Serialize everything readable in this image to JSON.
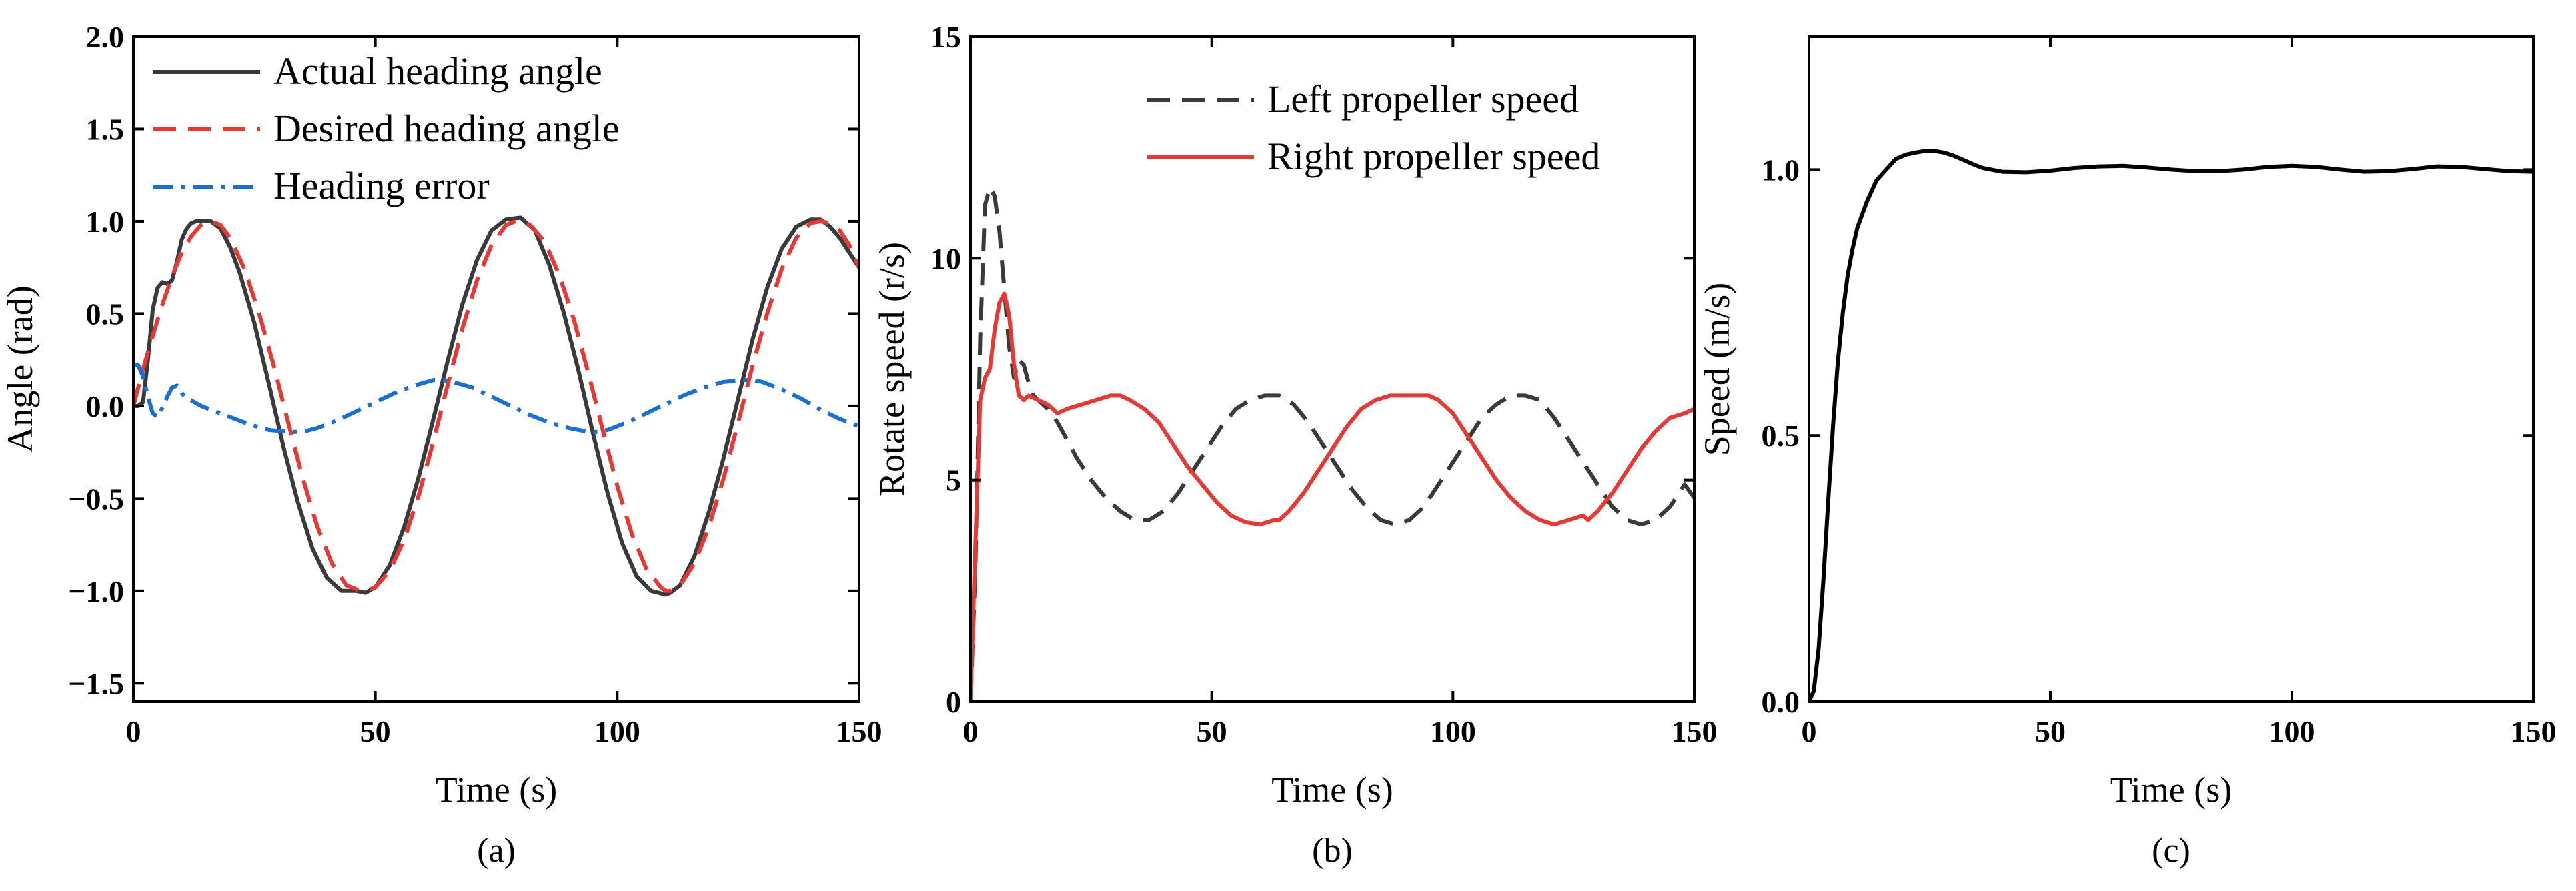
{
  "chart_data": [
    {
      "panel": "a",
      "type": "line",
      "caption": "(a)",
      "xlabel": "Time (s)",
      "ylabel": "Angle (rad)",
      "xlim": [
        0,
        150
      ],
      "ylim": [
        -1.6,
        2.0
      ],
      "xticks": [
        0,
        50,
        100,
        150
      ],
      "yticks": [
        -1.5,
        -1.0,
        -0.5,
        0.0,
        0.5,
        1.0,
        1.5,
        2.0
      ],
      "xtick_labels": [
        "0",
        "50",
        "100",
        "150"
      ],
      "ytick_labels": [
        "−1.5",
        "−1.0",
        "−0.5",
        "0.0",
        "0.5",
        "1.0",
        "1.5",
        "2.0"
      ],
      "legend_position": "top-left",
      "series": [
        {
          "name": "Actual heading angle",
          "color": "#3a3a3a",
          "style": "solid",
          "x": [
            0,
            1,
            2,
            3,
            4,
            5,
            6,
            7,
            8,
            9,
            10,
            11,
            12,
            13,
            14,
            16,
            18,
            20,
            22,
            25,
            28,
            31,
            34,
            37,
            40,
            43,
            46,
            48,
            50,
            53,
            56,
            59,
            62,
            65,
            68,
            71,
            74,
            77,
            80,
            83,
            86,
            89,
            92,
            95,
            98,
            101,
            104,
            107,
            110,
            111,
            113,
            116,
            119,
            122,
            125,
            128,
            131,
            134,
            137,
            140,
            142,
            144,
            146,
            148,
            150
          ],
          "y": [
            0.0,
            0.0,
            0.02,
            0.25,
            0.52,
            0.64,
            0.67,
            0.66,
            0.68,
            0.78,
            0.9,
            0.96,
            0.99,
            1.0,
            1.0,
            1.0,
            0.96,
            0.86,
            0.72,
            0.45,
            0.12,
            -0.22,
            -0.52,
            -0.77,
            -0.93,
            -1.0,
            -1.0,
            -1.01,
            -0.98,
            -0.86,
            -0.65,
            -0.38,
            -0.07,
            0.25,
            0.55,
            0.79,
            0.95,
            1.01,
            1.02,
            0.95,
            0.76,
            0.5,
            0.19,
            -0.15,
            -0.47,
            -0.74,
            -0.92,
            -1.0,
            -1.02,
            -1.01,
            -0.97,
            -0.81,
            -0.57,
            -0.28,
            0.04,
            0.36,
            0.64,
            0.85,
            0.97,
            1.01,
            1.01,
            0.97,
            0.91,
            0.83,
            0.75
          ]
        },
        {
          "name": "Desired heading angle",
          "color": "#e53935",
          "style": "dashed",
          "x": [
            0,
            2,
            4,
            6,
            8,
            10,
            12,
            14,
            16,
            18,
            20,
            23,
            26,
            29,
            32,
            35,
            38,
            41,
            44,
            47,
            48,
            50,
            53,
            56,
            59,
            62,
            65,
            68,
            71,
            74,
            77,
            79,
            80,
            82,
            85,
            88,
            91,
            94,
            97,
            100,
            103,
            106,
            109,
            110,
            111,
            113,
            116,
            119,
            122,
            125,
            128,
            131,
            134,
            137,
            140,
            142,
            144,
            146,
            148,
            150
          ],
          "y": [
            0.0,
            0.2,
            0.38,
            0.55,
            0.7,
            0.83,
            0.92,
            0.98,
            1.0,
            0.98,
            0.91,
            0.74,
            0.5,
            0.22,
            -0.09,
            -0.39,
            -0.65,
            -0.85,
            -0.97,
            -1.0,
            -1.0,
            -0.98,
            -0.89,
            -0.72,
            -0.48,
            -0.19,
            0.12,
            0.42,
            0.68,
            0.87,
            0.98,
            1.0,
            1.0,
            0.98,
            0.89,
            0.71,
            0.47,
            0.18,
            -0.13,
            -0.43,
            -0.69,
            -0.88,
            -0.98,
            -1.0,
            -1.0,
            -0.97,
            -0.85,
            -0.65,
            -0.39,
            -0.09,
            0.22,
            0.5,
            0.74,
            0.91,
            0.99,
            1.0,
            0.99,
            0.95,
            0.87,
            0.75
          ]
        },
        {
          "name": "Heading error",
          "color": "#1a6fd6",
          "style": "dashdot",
          "x": [
            0,
            1,
            2,
            3,
            4,
            5,
            6,
            7,
            8,
            9,
            10,
            11,
            12,
            14,
            17,
            20,
            24,
            28,
            32,
            35,
            38,
            42,
            46,
            50,
            54,
            58,
            62,
            64,
            66,
            70,
            74,
            78,
            82,
            86,
            90,
            94,
            96,
            98,
            102,
            106,
            110,
            114,
            118,
            122,
            126,
            128,
            130,
            134,
            138,
            142,
            146,
            150
          ],
          "y": [
            0.22,
            0.22,
            0.16,
            0.05,
            -0.04,
            -0.06,
            -0.01,
            0.05,
            0.1,
            0.11,
            0.07,
            0.04,
            0.03,
            0.0,
            -0.03,
            -0.06,
            -0.1,
            -0.13,
            -0.14,
            -0.14,
            -0.12,
            -0.08,
            -0.03,
            0.02,
            0.07,
            0.11,
            0.14,
            0.14,
            0.13,
            0.1,
            0.05,
            0.0,
            -0.05,
            -0.09,
            -0.12,
            -0.14,
            -0.14,
            -0.13,
            -0.09,
            -0.04,
            0.01,
            0.06,
            0.1,
            0.13,
            0.14,
            0.14,
            0.13,
            0.09,
            0.04,
            -0.02,
            -0.07,
            -0.11
          ]
        }
      ]
    },
    {
      "panel": "b",
      "type": "line",
      "caption": "(b)",
      "xlabel": "Time (s)",
      "ylabel": "Rotate speed (r/s)",
      "xlim": [
        0,
        150
      ],
      "ylim": [
        0,
        15
      ],
      "xticks": [
        0,
        50,
        100,
        150
      ],
      "yticks": [
        0,
        5,
        10,
        15
      ],
      "xtick_labels": [
        "0",
        "50",
        "100",
        "150"
      ],
      "ytick_labels": [
        "0",
        "5",
        "10",
        "15"
      ],
      "legend_position": "top-right",
      "series": [
        {
          "name": "Left propeller speed",
          "color": "#3a3a3a",
          "style": "dashed",
          "x": [
            0,
            1,
            2,
            3,
            4,
            5,
            6,
            7,
            8,
            9,
            10,
            11,
            12,
            13,
            14,
            16,
            18,
            20,
            22,
            25,
            28,
            31,
            34,
            37,
            40,
            43,
            46,
            49,
            52,
            55,
            58,
            61,
            64,
            67,
            70,
            73,
            76,
            79,
            82,
            85,
            88,
            91,
            94,
            97,
            100,
            103,
            106,
            109,
            112,
            115,
            118,
            121,
            124,
            127,
            130,
            133,
            136,
            139,
            142,
            145,
            148,
            150
          ],
          "y": [
            0.0,
            3.0,
            8.2,
            11.2,
            11.6,
            11.4,
            10.6,
            9.3,
            8.0,
            7.3,
            7.7,
            7.6,
            7.2,
            6.9,
            6.8,
            6.6,
            6.3,
            5.9,
            5.5,
            5.0,
            4.6,
            4.3,
            4.1,
            4.1,
            4.3,
            4.7,
            5.2,
            5.7,
            6.2,
            6.6,
            6.8,
            6.9,
            6.9,
            6.7,
            6.3,
            5.8,
            5.3,
            4.8,
            4.4,
            4.1,
            4.0,
            4.1,
            4.4,
            4.9,
            5.4,
            5.9,
            6.4,
            6.7,
            6.9,
            6.9,
            6.8,
            6.4,
            5.9,
            5.4,
            4.9,
            4.4,
            4.1,
            4.0,
            4.1,
            4.4,
            4.9,
            4.6
          ]
        },
        {
          "name": "Right propeller speed",
          "color": "#e53935",
          "style": "solid",
          "x": [
            0,
            1,
            2,
            3,
            4,
            5,
            6,
            7,
            8,
            9,
            10,
            11,
            12,
            14,
            16,
            18,
            20,
            23,
            26,
            29,
            31,
            33,
            36,
            39,
            42,
            45,
            48,
            51,
            54,
            57,
            60,
            63,
            64,
            66,
            69,
            72,
            75,
            78,
            81,
            84,
            87,
            90,
            93,
            95,
            97,
            100,
            103,
            106,
            109,
            112,
            115,
            118,
            121,
            124,
            127,
            128,
            130,
            133,
            136,
            139,
            142,
            145,
            148,
            150
          ],
          "y": [
            0.0,
            3.5,
            6.8,
            7.3,
            7.5,
            8.4,
            9.0,
            9.2,
            8.7,
            7.6,
            6.9,
            6.8,
            6.9,
            6.8,
            6.7,
            6.5,
            6.6,
            6.7,
            6.8,
            6.9,
            6.9,
            6.8,
            6.6,
            6.3,
            5.8,
            5.3,
            4.9,
            4.5,
            4.2,
            4.05,
            4.0,
            4.1,
            4.1,
            4.3,
            4.7,
            5.2,
            5.7,
            6.2,
            6.6,
            6.8,
            6.9,
            6.9,
            6.9,
            6.9,
            6.8,
            6.5,
            6.0,
            5.5,
            5.0,
            4.6,
            4.3,
            4.1,
            4.0,
            4.1,
            4.2,
            4.1,
            4.3,
            4.7,
            5.2,
            5.7,
            6.1,
            6.4,
            6.5,
            6.6
          ]
        }
      ]
    },
    {
      "panel": "c",
      "type": "line",
      "caption": "(c)",
      "xlabel": "Time (s)",
      "ylabel": "Speed (m/s)",
      "xlim": [
        0,
        150
      ],
      "ylim": [
        0,
        1.25
      ],
      "xticks": [
        0,
        50,
        100,
        150
      ],
      "yticks": [
        0.0,
        0.5,
        1.0
      ],
      "xtick_labels": [
        "0",
        "50",
        "100",
        "150"
      ],
      "ytick_labels": [
        "0.0",
        "0.5",
        "1.0"
      ],
      "legend_position": "none",
      "series": [
        {
          "name": "Speed",
          "color": "#000000",
          "style": "solid",
          "x": [
            0,
            1,
            2,
            3,
            4,
            5,
            6,
            7,
            8,
            9,
            10,
            12,
            14,
            16,
            18,
            20,
            22,
            24,
            26,
            28,
            30,
            32,
            34,
            36,
            40,
            45,
            50,
            55,
            60,
            65,
            70,
            75,
            80,
            85,
            90,
            95,
            100,
            105,
            110,
            115,
            120,
            125,
            130,
            135,
            140,
            145,
            150
          ],
          "y": [
            0.0,
            0.02,
            0.1,
            0.23,
            0.38,
            0.52,
            0.64,
            0.73,
            0.8,
            0.85,
            0.89,
            0.94,
            0.98,
            1.0,
            1.02,
            1.028,
            1.032,
            1.035,
            1.035,
            1.032,
            1.026,
            1.018,
            1.01,
            1.003,
            0.996,
            0.995,
            0.998,
            1.003,
            1.006,
            1.007,
            1.004,
            1.0,
            0.997,
            0.997,
            1.0,
            1.005,
            1.007,
            1.005,
            1.0,
            0.996,
            0.997,
            1.001,
            1.006,
            1.005,
            1.001,
            0.997,
            0.996
          ]
        }
      ]
    }
  ]
}
